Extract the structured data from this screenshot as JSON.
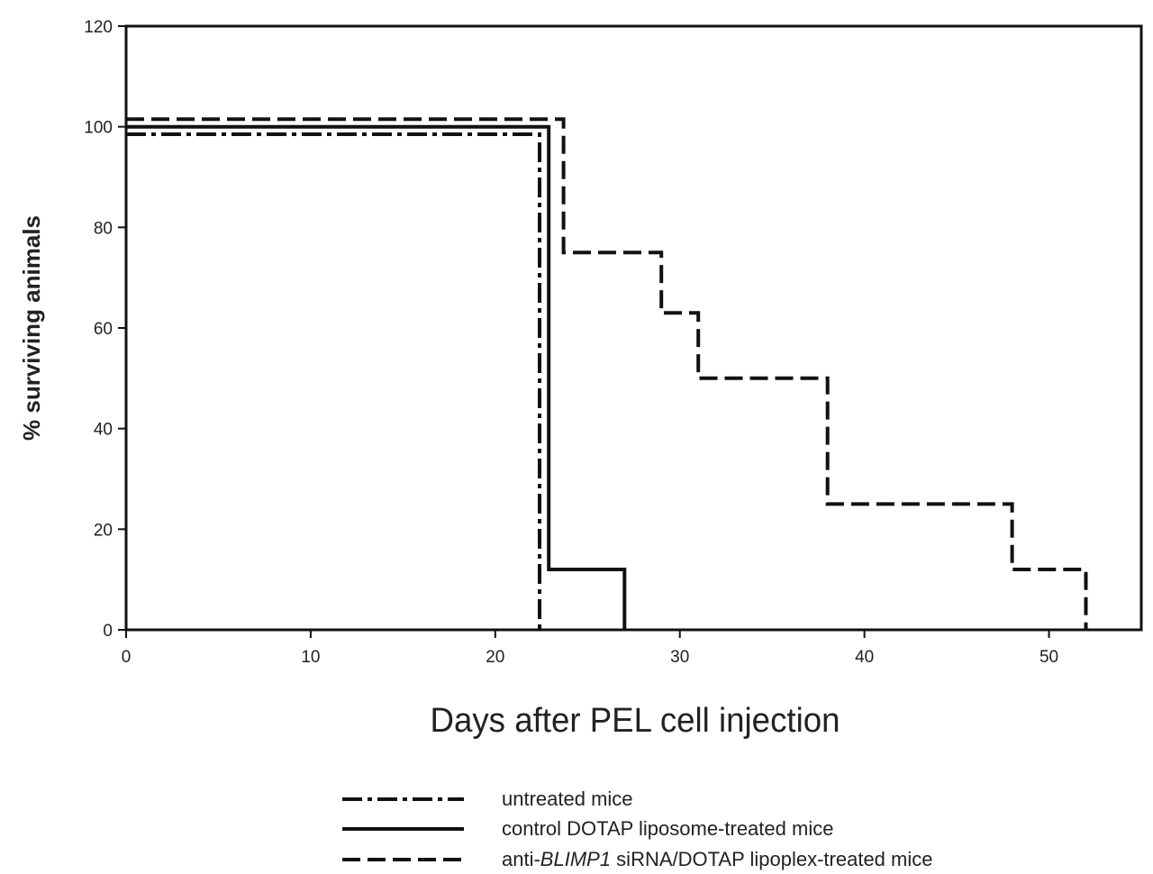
{
  "chart_data": {
    "type": "line",
    "xlabel": "Days after PEL cell injection",
    "ylabel": "% surviving animals",
    "xlim": [
      0,
      55
    ],
    "ylim": [
      0,
      120
    ],
    "x_ticks": [
      0,
      10,
      20,
      30,
      40,
      50
    ],
    "y_ticks": [
      0,
      20,
      40,
      60,
      80,
      100,
      120
    ],
    "grid": false,
    "legend_position": "bottom",
    "series": [
      {
        "name": "untreated mice",
        "style": "dash-dot",
        "points": [
          [
            0,
            98.5
          ],
          [
            22.4,
            98.5
          ],
          [
            22.4,
            0
          ]
        ]
      },
      {
        "name": "control DOTAP liposome-treated mice",
        "style": "solid",
        "points": [
          [
            0,
            100
          ],
          [
            22.9,
            100
          ],
          [
            22.9,
            12
          ],
          [
            27,
            12
          ],
          [
            27,
            0
          ]
        ]
      },
      {
        "name_parts": [
          "anti-",
          "BLIMP1",
          " siRNA/DOTAP lipoplex-treated mice"
        ],
        "style": "dashed",
        "points": [
          [
            0,
            101.5
          ],
          [
            23.7,
            101.5
          ],
          [
            23.7,
            75
          ],
          [
            29,
            75
          ],
          [
            29,
            63
          ],
          [
            31,
            63
          ],
          [
            31,
            50
          ],
          [
            38,
            50
          ],
          [
            38,
            25
          ],
          [
            48,
            25
          ],
          [
            48,
            12
          ],
          [
            52,
            12
          ],
          [
            52,
            0
          ]
        ]
      }
    ]
  }
}
